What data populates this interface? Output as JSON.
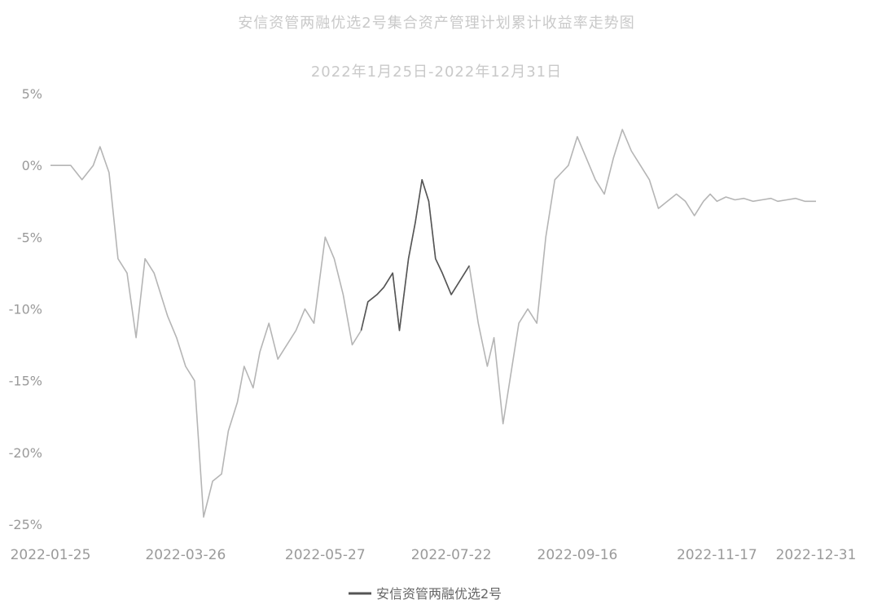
{
  "chart_data": {
    "type": "line",
    "title": "安信资管两融优选2号集合资产管理计划累计收益率走势图",
    "subtitle": "2022年1月25日-2022年12月31日",
    "xlabel": "",
    "ylabel": "",
    "yticks": [
      "5%",
      "0%",
      "-5%",
      "-10%",
      "-15%",
      "-20%",
      "-25%"
    ],
    "ytick_values": [
      5,
      0,
      -5,
      -10,
      -15,
      -20,
      -25
    ],
    "xticks": [
      "2022-01-25",
      "2022-03-26",
      "2022-05-27",
      "2022-07-22",
      "2022-09-16",
      "2022-11-17",
      "2022-12-31"
    ],
    "xtick_dates": [
      "2022-01-25",
      "2022-03-26",
      "2022-05-27",
      "2022-07-22",
      "2022-09-16",
      "2022-11-17",
      "2022-12-31"
    ],
    "ylim": [
      -25,
      5
    ],
    "grid": false,
    "legend_position": "bottom",
    "colors": {
      "line": "#b5b5b5",
      "line_dark": "#555555",
      "text": "#9a9a9a"
    },
    "series": [
      {
        "name": "安信资管两融优选2号",
        "x": [
          "2022-01-25",
          "2022-02-03",
          "2022-02-08",
          "2022-02-13",
          "2022-02-16",
          "2022-02-20",
          "2022-02-24",
          "2022-02-28",
          "2022-03-04",
          "2022-03-08",
          "2022-03-12",
          "2022-03-15",
          "2022-03-18",
          "2022-03-22",
          "2022-03-26",
          "2022-03-30",
          "2022-04-03",
          "2022-04-07",
          "2022-04-11",
          "2022-04-14",
          "2022-04-18",
          "2022-04-21",
          "2022-04-25",
          "2022-04-28",
          "2022-05-02",
          "2022-05-06",
          "2022-05-10",
          "2022-05-14",
          "2022-05-18",
          "2022-05-22",
          "2022-05-27",
          "2022-05-31",
          "2022-06-04",
          "2022-06-08",
          "2022-06-12",
          "2022-06-15",
          "2022-06-19",
          "2022-06-22",
          "2022-06-26",
          "2022-06-29",
          "2022-07-03",
          "2022-07-06",
          "2022-07-09",
          "2022-07-12",
          "2022-07-15",
          "2022-07-18",
          "2022-07-22",
          "2022-07-26",
          "2022-07-30",
          "2022-08-03",
          "2022-08-07",
          "2022-08-10",
          "2022-08-14",
          "2022-08-17",
          "2022-08-21",
          "2022-08-25",
          "2022-08-29",
          "2022-09-02",
          "2022-09-06",
          "2022-09-09",
          "2022-09-12",
          "2022-09-16",
          "2022-09-20",
          "2022-09-24",
          "2022-09-28",
          "2022-10-02",
          "2022-10-06",
          "2022-10-10",
          "2022-10-14",
          "2022-10-18",
          "2022-10-22",
          "2022-10-26",
          "2022-10-30",
          "2022-11-03",
          "2022-11-07",
          "2022-11-11",
          "2022-11-14",
          "2022-11-17",
          "2022-11-21",
          "2022-11-25",
          "2022-11-29",
          "2022-12-03",
          "2022-12-07",
          "2022-12-11",
          "2022-12-14",
          "2022-12-18",
          "2022-12-22",
          "2022-12-26",
          "2022-12-31"
        ],
        "values": [
          0.0,
          0.0,
          -1.0,
          0.0,
          1.3,
          -0.5,
          -6.5,
          -7.5,
          -12.0,
          -6.5,
          -7.5,
          -9.0,
          -10.5,
          -12.0,
          -14.0,
          -15.0,
          -24.5,
          -22.0,
          -21.5,
          -18.5,
          -16.5,
          -14.0,
          -15.5,
          -13.0,
          -11.0,
          -13.5,
          -12.5,
          -11.5,
          -10.0,
          -11.0,
          -5.0,
          -6.5,
          -9.0,
          -12.5,
          -11.5,
          -9.5,
          -9.0,
          -8.5,
          -7.5,
          -11.5,
          -6.5,
          -4.0,
          -1.0,
          -2.5,
          -6.5,
          -7.5,
          -9.0,
          -8.0,
          -7.0,
          -11.0,
          -14.0,
          -12.0,
          -18.0,
          -15.0,
          -11.0,
          -10.0,
          -11.0,
          -5.0,
          -1.0,
          -0.5,
          0.0,
          2.0,
          0.5,
          -1.0,
          -2.0,
          0.5,
          2.5,
          1.0,
          0.0,
          -1.0,
          -3.0,
          -2.5,
          -2.0,
          -2.5,
          -3.5,
          -2.5,
          -2.0,
          -2.5,
          -2.2,
          -2.4,
          -2.3,
          -2.5,
          -2.4,
          -2.3,
          -2.5,
          -2.4,
          -2.3,
          -2.5,
          -2.5
        ],
        "dark_range": [
          "2022-06-12",
          "2022-07-30"
        ]
      }
    ],
    "legend": [
      "安信资管两融优选2号"
    ]
  }
}
